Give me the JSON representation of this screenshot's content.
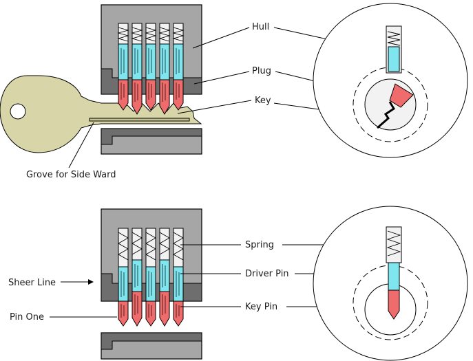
{
  "labels": {
    "hull": "Hull",
    "plug": "Plug",
    "key": "Key",
    "groove": "Grove for Side Ward",
    "spring": "Spring",
    "driver_pin": "Driver Pin",
    "key_pin": "Key Pin",
    "shear_line": "Sheer Line",
    "pin_one": "Pin One"
  },
  "colors": {
    "hull": "#a6a6a6",
    "hull_dark": "#6e6e6e",
    "plug_bg": "#f2f2f2",
    "driver_pin": "#7fe6f0",
    "key_pin": "#f06b6b",
    "key": "#d8d6a8"
  }
}
